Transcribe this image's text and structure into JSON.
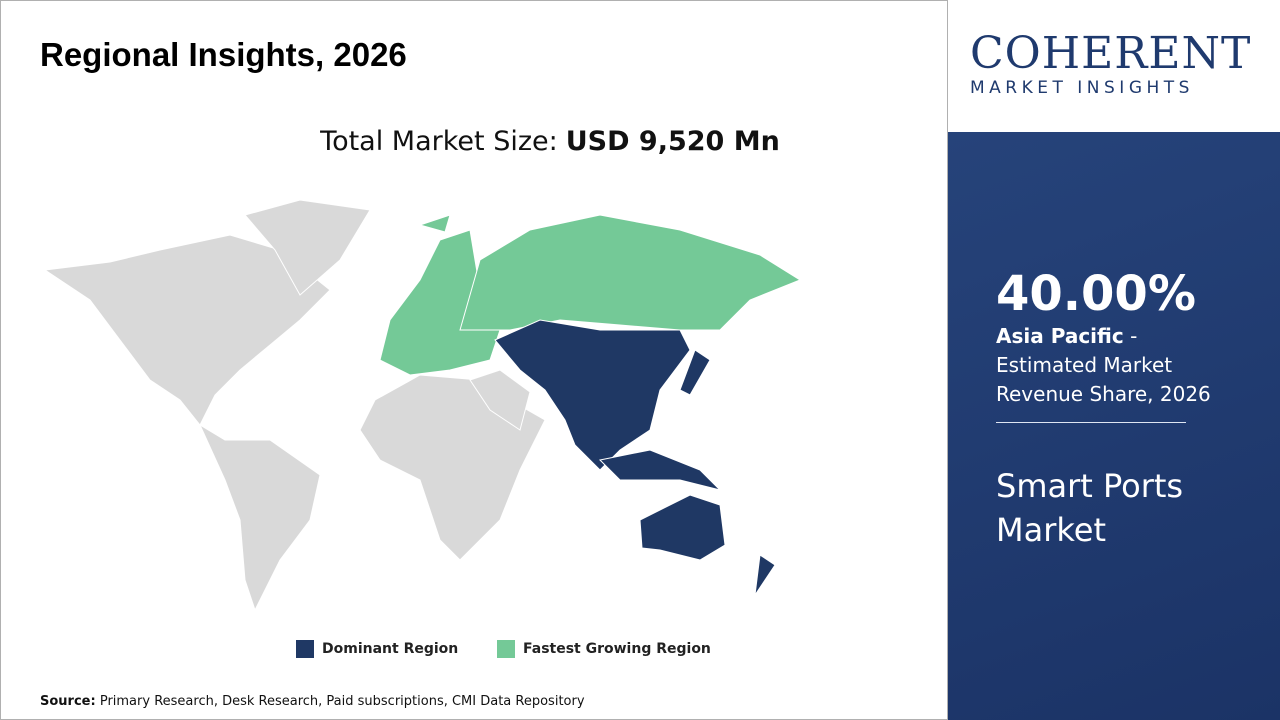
{
  "header": {
    "title": "Regional Insights, 2026"
  },
  "market_size": {
    "label": "Total Market Size:",
    "value": "USD 9,520 Mn"
  },
  "legend": {
    "dominant": "Dominant Region",
    "fastest": "Fastest Growing Region"
  },
  "logo": {
    "name": "COHERENT",
    "tagline": "MARKET INSIGHTS"
  },
  "sidebar": {
    "share": "40.00%",
    "region": "Asia Pacific",
    "description": "- Estimated Market Revenue Share, 2026",
    "market": "Smart Ports Market"
  },
  "source": {
    "label": "Source:",
    "text": "Primary Research, Desk Research, Paid subscriptions, CMI Data Repository"
  }
}
